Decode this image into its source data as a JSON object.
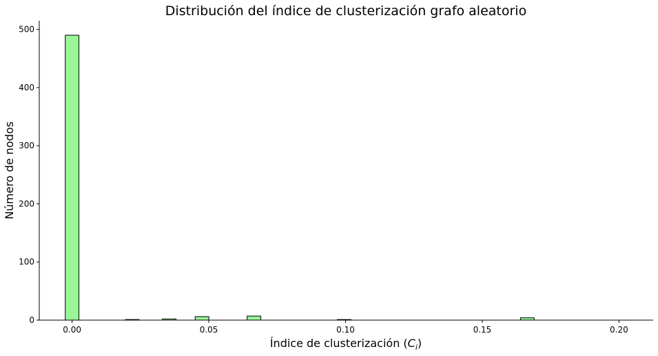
{
  "chart_data": {
    "type": "bar",
    "title": "Distribución del índice de clusterización grafo aleatorio",
    "xlabel_main": "Índice de clusterización (",
    "xlabel_symbol": "C",
    "xlabel_sub": "i",
    "xlabel_end": ")",
    "ylabel": "Número de nodos",
    "xlim": [
      -0.012,
      0.2125
    ],
    "ylim": [
      0,
      515
    ],
    "x_ticks": [
      0.0,
      0.05,
      0.1,
      0.15,
      0.2
    ],
    "x_tick_labels": [
      "0.00",
      "0.05",
      "0.10",
      "0.15",
      "0.20"
    ],
    "y_ticks": [
      0,
      100,
      200,
      300,
      400,
      500
    ],
    "y_tick_labels": [
      "0",
      "100",
      "200",
      "300",
      "400",
      "500"
    ],
    "bin_width": 0.005,
    "bar_color": "#98f598",
    "edge_color": "#000000",
    "bars": [
      {
        "x": -0.0025,
        "value": 490
      },
      {
        "x": 0.0195,
        "value": 1
      },
      {
        "x": 0.033,
        "value": 2
      },
      {
        "x": 0.045,
        "value": 6
      },
      {
        "x": 0.064,
        "value": 7
      },
      {
        "x": 0.097,
        "value": 1
      },
      {
        "x": 0.164,
        "value": 4
      }
    ]
  }
}
